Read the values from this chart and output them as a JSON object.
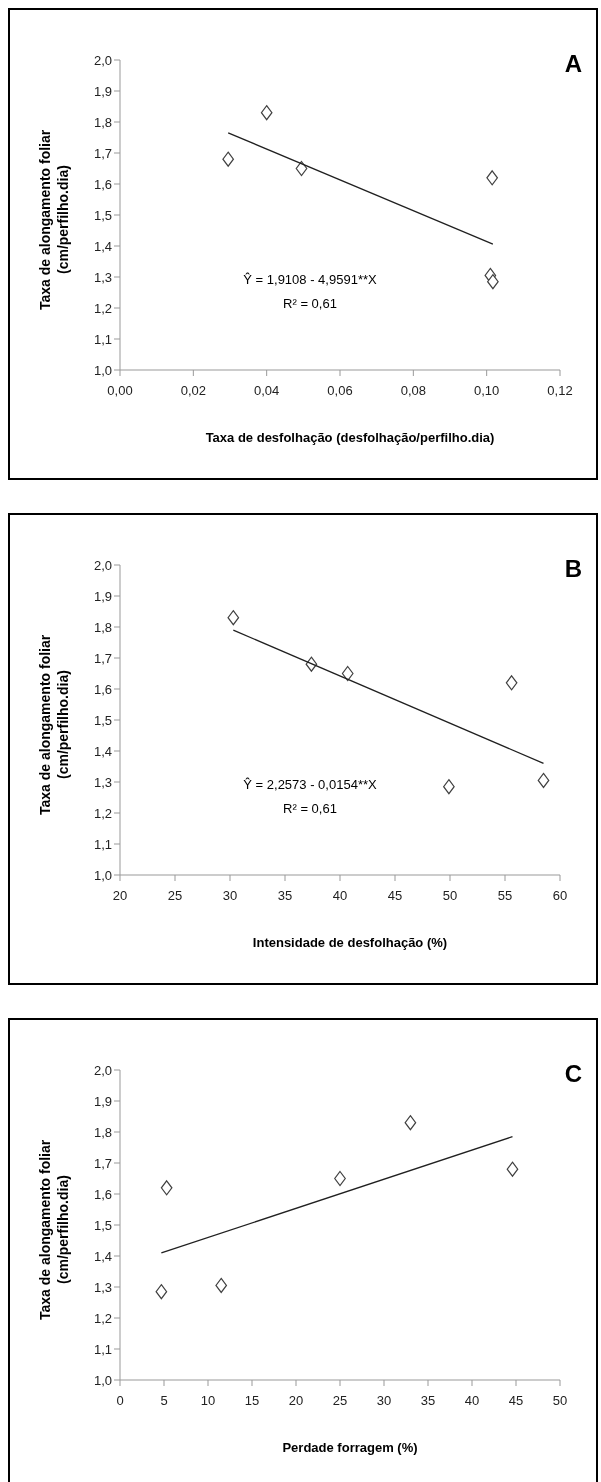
{
  "chart_data": [
    {
      "type": "scatter",
      "xlabel": "Taxa de desfolhação  (desfolhação/perfilho.dia)",
      "ylabel": "Taxa de alongamento foliar (cm/perfilho.dia)",
      "annotations": [
        "A",
        "Ŷ = 1,9108 - 4,9591**X",
        "R² = 0,61"
      ],
      "series": [
        {
          "type": "scatter",
          "color": "#404040",
          "marker": "diamond",
          "x": [
            0.0295,
            0.04,
            0.0495,
            0.1015,
            0.101,
            0.1017
          ],
          "values": [
            1.68,
            1.83,
            1.65,
            1.62,
            1.305,
            1.285
          ]
        },
        {
          "type": "line",
          "color": "#202020",
          "x": [
            0.0295,
            0.1017
          ],
          "values": [
            1.765,
            1.406
          ]
        }
      ],
      "xlim": [
        0,
        0.12
      ],
      "xticks": [
        {
          "value": 0,
          "label": "0,00"
        },
        {
          "value": 0.02,
          "label": "0,02"
        },
        {
          "value": 0.04,
          "label": "0,04"
        },
        {
          "value": 0.06,
          "label": "0,06"
        },
        {
          "value": 0.08,
          "label": "0,08"
        },
        {
          "value": 0.1,
          "label": "0,10"
        },
        {
          "value": 0.12,
          "label": "0,12"
        }
      ],
      "ylim": [
        1.0,
        2.0
      ],
      "yticks": [
        {
          "value": 1.0,
          "label": "1,0"
        },
        {
          "value": 1.1,
          "label": "1,1"
        },
        {
          "value": 1.2,
          "label": "1,2"
        },
        {
          "value": 1.3,
          "label": "1,3"
        },
        {
          "value": 1.4,
          "label": "1,4"
        },
        {
          "value": 1.5,
          "label": "1,5"
        },
        {
          "value": 1.6,
          "label": "1,6"
        },
        {
          "value": 1.7,
          "label": "1,7"
        },
        {
          "value": 1.8,
          "label": "1,8"
        },
        {
          "value": 1.9,
          "label": "1,9"
        },
        {
          "value": 2.0,
          "label": "2,0"
        }
      ]
    },
    {
      "type": "scatter",
      "xlabel": "Intensidade de desfolhação  (%)",
      "ylabel": "Taxa de alongamento foliar (cm/perfilho.dia)",
      "annotations": [
        "B",
        "Ŷ = 2,2573 - 0,0154**X",
        "R² = 0,61"
      ],
      "series": [
        {
          "type": "scatter",
          "color": "#404040",
          "marker": "diamond",
          "x": [
            30.3,
            37.4,
            40.7,
            49.9,
            55.6,
            58.5
          ],
          "values": [
            1.83,
            1.68,
            1.65,
            1.285,
            1.62,
            1.305
          ]
        },
        {
          "type": "line",
          "color": "#202020",
          "x": [
            30.3,
            58.5
          ],
          "values": [
            1.79,
            1.36
          ]
        }
      ],
      "xlim": [
        20,
        60
      ],
      "xticks": [
        20,
        25,
        30,
        35,
        40,
        45,
        50,
        55,
        60
      ],
      "ylim": [
        1.0,
        2.0
      ],
      "yticks": [
        {
          "value": 1.0,
          "label": "1,0"
        },
        {
          "value": 1.1,
          "label": "1,1"
        },
        {
          "value": 1.2,
          "label": "1,2"
        },
        {
          "value": 1.3,
          "label": "1,3"
        },
        {
          "value": 1.4,
          "label": "1,4"
        },
        {
          "value": 1.5,
          "label": "1,5"
        },
        {
          "value": 1.6,
          "label": "1,6"
        },
        {
          "value": 1.7,
          "label": "1,7"
        },
        {
          "value": 1.8,
          "label": "1,8"
        },
        {
          "value": 1.9,
          "label": "1,9"
        },
        {
          "value": 2.0,
          "label": "2,0"
        }
      ]
    },
    {
      "type": "scatter",
      "xlabel": "Perdade forragem (%)",
      "ylabel": "Taxa de alongamento foliar (cm/perfilho.dia)",
      "annotations": [
        "C"
      ],
      "series": [
        {
          "type": "scatter",
          "color": "#404040",
          "marker": "diamond",
          "x": [
            4.7,
            5.3,
            11.5,
            25,
            33,
            44.6
          ],
          "values": [
            1.285,
            1.62,
            1.305,
            1.65,
            1.83,
            1.68
          ]
        },
        {
          "type": "line",
          "color": "#202020",
          "x": [
            4.7,
            44.6
          ],
          "values": [
            1.41,
            1.785
          ]
        }
      ],
      "xlim": [
        0,
        50
      ],
      "xticks": [
        0,
        5,
        10,
        15,
        20,
        25,
        30,
        35,
        40,
        45,
        50
      ],
      "ylim": [
        1.0,
        2.0
      ],
      "yticks": [
        {
          "value": 1.0,
          "label": "1,0"
        },
        {
          "value": 1.1,
          "label": "1,1"
        },
        {
          "value": 1.2,
          "label": "1,2"
        },
        {
          "value": 1.3,
          "label": "1,3"
        },
        {
          "value": 1.4,
          "label": "1,4"
        },
        {
          "value": 1.5,
          "label": "1,5"
        },
        {
          "value": 1.6,
          "label": "1,6"
        },
        {
          "value": 1.7,
          "label": "1,7"
        },
        {
          "value": 1.8,
          "label": "1,8"
        },
        {
          "value": 1.9,
          "label": "1,9"
        },
        {
          "value": 2.0,
          "label": "2,0"
        }
      ]
    }
  ]
}
